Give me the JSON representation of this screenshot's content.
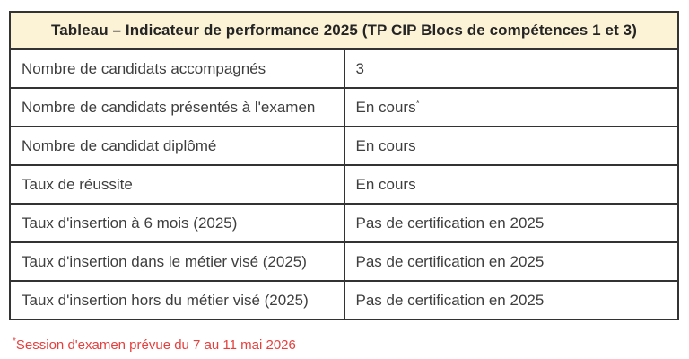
{
  "table": {
    "title": "Tableau – Indicateur de performance 2025 (TP CIP Blocs de compétences 1 et 3)",
    "rows": [
      {
        "label": "Nombre de candidats accompagnés",
        "value": "3",
        "value_sup": ""
      },
      {
        "label": "Nombre de candidats présentés à l'examen",
        "value": "En cours",
        "value_sup": "*"
      },
      {
        "label": "Nombre de candidat diplômé",
        "value": "En cours",
        "value_sup": ""
      },
      {
        "label": "Taux de réussite",
        "value": "En cours",
        "value_sup": ""
      },
      {
        "label": "Taux d'insertion à 6 mois (2025)",
        "value": "Pas de certification en 2025",
        "value_sup": ""
      },
      {
        "label": "Taux d'insertion dans le métier visé (2025)",
        "value": "Pas de certification en 2025",
        "value_sup": ""
      },
      {
        "label": "Taux d'insertion hors du métier visé (2025)",
        "value": "Pas de certification en 2025",
        "value_sup": ""
      }
    ]
  },
  "footnote": {
    "marker": "*",
    "text": "Session d'examen prévue du 7 au 11 mai 2026"
  },
  "colors": {
    "header_background": "#fcf3d6",
    "border": "#333333",
    "body_text": "#3e3e3e",
    "title_text": "#242424",
    "footnote_text": "#e5403e"
  }
}
